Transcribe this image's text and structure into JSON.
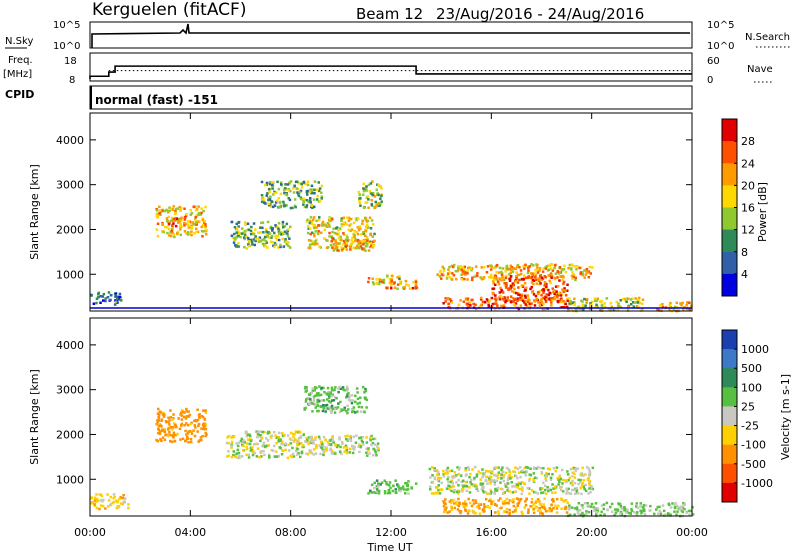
{
  "header": {
    "station": "Kerguelen (fitACF)",
    "beam": "Beam 12",
    "dates": "23/Aug/2016 - 24/Aug/2016"
  },
  "noise_panel": {
    "left_label": "N.Sky",
    "right_label": "N.Search",
    "left_ticks": [
      "10^5",
      "10^0"
    ],
    "right_ticks": [
      "10^5",
      "10^0"
    ]
  },
  "freq_panel": {
    "left_label_1": "Freq.",
    "left_label_2": "[MHz]",
    "right_label": "Nave",
    "left_ticks": [
      "18",
      "8"
    ],
    "right_ticks": [
      "60",
      "0"
    ],
    "freq_steps": [
      {
        "t": 0.0,
        "mhz": 9.2
      },
      {
        "t": 0.75,
        "mhz": 11.0
      },
      {
        "t": 1.0,
        "mhz": 13.6
      },
      {
        "t": 12.0,
        "mhz": 13.6
      },
      {
        "t": 13.0,
        "mhz": 10.2
      },
      {
        "t": 24.0,
        "mhz": 10.2
      }
    ],
    "nave_level": 22
  },
  "cpid_panel": {
    "label": "CPID",
    "text": "normal (fast) -151"
  },
  "chart_data": [
    {
      "type": "heatmap",
      "name": "power",
      "xlabel": "Time UT",
      "ylabel": "Slant Range [km]",
      "xlim": [
        0,
        24
      ],
      "ylim": [
        180,
        4600
      ],
      "x_ticks": [
        "00:00",
        "04:00",
        "08:00",
        "12:00",
        "16:00",
        "20:00",
        "00:00"
      ],
      "y_ticks": [
        1000,
        2000,
        3000,
        4000
      ],
      "colorbar_label": "Power [dB]",
      "colorbar_ticks": [
        28,
        24,
        20,
        16,
        12,
        8,
        4
      ],
      "colorbar_colors": [
        "#e00000",
        "#ff5000",
        "#ff9a00",
        "#ffd800",
        "#90c830",
        "#2e8b57",
        "#3060a8",
        "#0000e0"
      ],
      "regions": [
        {
          "t": [
            0.0,
            1.2
          ],
          "r": [
            350,
            650
          ],
          "v": 7
        },
        {
          "t": [
            2.6,
            4.6
          ],
          "r": [
            1850,
            2550
          ],
          "v": 19
        },
        {
          "t": [
            3.0,
            3.8
          ],
          "r": [
            2100,
            2300
          ],
          "v": 24
        },
        {
          "t": [
            5.6,
            8.0
          ],
          "r": [
            1600,
            2200
          ],
          "v": 13
        },
        {
          "t": [
            6.8,
            9.2
          ],
          "r": [
            2500,
            3100
          ],
          "v": 12
        },
        {
          "t": [
            8.6,
            11.3
          ],
          "r": [
            1600,
            2300
          ],
          "v": 18
        },
        {
          "t": [
            9.6,
            11.3
          ],
          "r": [
            1550,
            1800
          ],
          "v": 21
        },
        {
          "t": [
            10.6,
            11.6
          ],
          "r": [
            2500,
            3100
          ],
          "v": 15
        },
        {
          "t": [
            11.0,
            12.4
          ],
          "r": [
            800,
            1000
          ],
          "v": 18
        },
        {
          "t": [
            11.6,
            13.0
          ],
          "r": [
            700,
            900
          ],
          "v": 22
        },
        {
          "t": [
            13.8,
            20.0
          ],
          "r": [
            900,
            1250
          ],
          "v": 20
        },
        {
          "t": [
            14.0,
            19.0
          ],
          "r": [
            250,
            500
          ],
          "v": 25
        },
        {
          "t": [
            16.0,
            19.0
          ],
          "r": [
            400,
            1000
          ],
          "v": 26
        },
        {
          "t": [
            19.0,
            22.0
          ],
          "r": [
            200,
            500
          ],
          "v": 16
        },
        {
          "t": [
            22.5,
            24.0
          ],
          "r": [
            200,
            400
          ],
          "v": 20
        }
      ]
    },
    {
      "type": "heatmap",
      "name": "velocity",
      "xlabel": "Time UT",
      "ylabel": "Slant Range [km]",
      "xlim": [
        0,
        24
      ],
      "ylim": [
        180,
        4600
      ],
      "x_ticks": [
        "00:00",
        "04:00",
        "08:00",
        "12:00",
        "16:00",
        "20:00",
        "00:00"
      ],
      "y_ticks": [
        1000,
        2000,
        3000,
        4000
      ],
      "colorbar_label": "Velocity [m s-1]",
      "colorbar_ticks": [
        1000,
        500,
        100,
        25,
        -25,
        -100,
        -500,
        -1000
      ],
      "colorbar_colors": [
        "#1a40b0",
        "#3c7ac8",
        "#2e8b57",
        "#58c040",
        "#c8c8c0",
        "#ffd000",
        "#ff9000",
        "#ff5000",
        "#e00000"
      ],
      "regions": [
        {
          "t": [
            0.0,
            1.5
          ],
          "r": [
            350,
            700
          ],
          "v": -60
        },
        {
          "t": [
            2.6,
            4.6
          ],
          "r": [
            1850,
            2600
          ],
          "v": -150
        },
        {
          "t": [
            5.4,
            8.5
          ],
          "r": [
            1500,
            2100
          ],
          "v": 0
        },
        {
          "t": [
            8.5,
            11.5
          ],
          "r": [
            1550,
            2000
          ],
          "v": 5
        },
        {
          "t": [
            8.5,
            11.0
          ],
          "r": [
            2500,
            3100
          ],
          "v": 60
        },
        {
          "t": [
            11.0,
            13.0
          ],
          "r": [
            700,
            1000
          ],
          "v": 60
        },
        {
          "t": [
            13.5,
            20.0
          ],
          "r": [
            700,
            1300
          ],
          "v": 0
        },
        {
          "t": [
            14.0,
            19.0
          ],
          "r": [
            250,
            600
          ],
          "v": -120
        },
        {
          "t": [
            19.0,
            24.0
          ],
          "r": [
            200,
            500
          ],
          "v": 40
        }
      ]
    }
  ]
}
